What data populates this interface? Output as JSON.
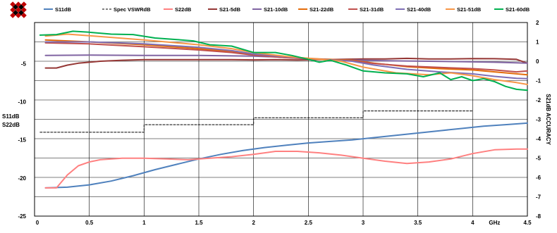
{
  "chart_data": {
    "type": "line",
    "xlabel": "GHz",
    "ylabel_left": [
      "S11dB",
      "S22dB"
    ],
    "ylabel_right": "S21dB ACCURACY",
    "x_ticks": [
      "0",
      "0.5",
      "1",
      "1.5",
      "2",
      "2.5",
      "3",
      "3.5",
      "4",
      "4.5"
    ],
    "y_left_ticks": [
      "-5",
      "-10",
      "-15",
      "-20",
      "-25"
    ],
    "y_right_ticks": [
      "2",
      "1",
      "0",
      "-1",
      "-2",
      "-3",
      "-4",
      "-5",
      "-6",
      "-7",
      "-8"
    ],
    "xlim": [
      0,
      4.5
    ],
    "ylim_left": [
      -25,
      0.4
    ],
    "ylim_right": [
      -8,
      2
    ],
    "grid": true,
    "legend_position": "top",
    "series": [
      {
        "name": "S11dB",
        "axis": "left",
        "color": "#4f81bd",
        "style": "solid",
        "x": [
          0.1,
          0.3,
          0.5,
          0.7,
          0.9,
          1.1,
          1.3,
          1.5,
          1.7,
          1.9,
          2.1,
          2.3,
          2.5,
          2.7,
          2.9,
          3.1,
          3.3,
          3.5,
          3.7,
          3.9,
          4.1,
          4.3,
          4.5
        ],
        "y": [
          -21.3,
          -21.2,
          -20.9,
          -20.4,
          -19.7,
          -18.9,
          -18.2,
          -17.5,
          -16.9,
          -16.4,
          -16.0,
          -15.7,
          -15.4,
          -15.2,
          -15.0,
          -14.7,
          -14.4,
          -14.1,
          -13.8,
          -13.5,
          -13.2,
          -13.0,
          -12.8
        ]
      },
      {
        "name": "Spec VSWRdB",
        "axis": "left",
        "color": "#000000",
        "style": "dashed",
        "x": [
          0.05,
          1.0,
          1.0,
          2.0,
          2.0,
          3.0,
          3.0,
          4.0
        ],
        "y": [
          -14,
          -14,
          -13,
          -13,
          -12.1,
          -12.1,
          -11.2,
          -11.2
        ]
      },
      {
        "name": "S22dB",
        "axis": "left",
        "color": "#ff8080",
        "style": "solid",
        "x": [
          0.1,
          0.2,
          0.3,
          0.4,
          0.5,
          0.6,
          0.8,
          1.0,
          1.2,
          1.4,
          1.6,
          1.8,
          2.0,
          2.2,
          2.4,
          2.6,
          2.8,
          3.0,
          3.2,
          3.4,
          3.6,
          3.8,
          4.0,
          4.2,
          4.4,
          4.5
        ],
        "y": [
          -21.3,
          -21.3,
          -19.6,
          -18.4,
          -17.9,
          -17.6,
          -17.4,
          -17.4,
          -17.5,
          -17.6,
          -17.4,
          -17.2,
          -16.9,
          -16.5,
          -16.5,
          -16.7,
          -17.0,
          -17.4,
          -17.8,
          -18.1,
          -17.9,
          -17.5,
          -16.8,
          -16.3,
          -16.2,
          -16.2
        ]
      },
      {
        "name": "S21-5dB",
        "axis": "right",
        "color": "#953735",
        "style": "solid",
        "x": [
          0.1,
          0.2,
          0.3,
          0.4,
          0.5,
          0.6,
          0.8,
          1.0,
          1.2,
          1.4,
          1.6,
          1.8,
          2.0,
          2.2,
          2.4,
          2.6,
          2.8,
          3.0,
          3.2,
          3.4,
          3.6,
          3.8,
          4.0,
          4.2,
          4.4,
          4.5
        ],
        "y": [
          -0.35,
          -0.35,
          -0.2,
          -0.1,
          -0.05,
          0.0,
          0.05,
          0.08,
          0.08,
          0.08,
          0.08,
          0.08,
          0.07,
          0.08,
          0.06,
          0.08,
          0.1,
          0.12,
          0.12,
          0.15,
          0.12,
          0.12,
          0.14,
          0.13,
          0.1,
          -0.1
        ]
      },
      {
        "name": "S21-10dB",
        "axis": "right",
        "color": "#8064a2",
        "style": "solid",
        "x": [
          0.1,
          0.5,
          1.0,
          1.5,
          2.0,
          2.2,
          2.5,
          2.8,
          3.0,
          3.3,
          3.6,
          3.9,
          4.2,
          4.4,
          4.5
        ],
        "y": [
          0.3,
          0.32,
          0.3,
          0.3,
          0.26,
          0.22,
          0.12,
          0.08,
          0.05,
          0.02,
          0.0,
          -0.02,
          -0.05,
          -0.08,
          -0.1
        ]
      },
      {
        "name": "S21-22dB",
        "axis": "right",
        "color": "#e46c0a",
        "style": "solid",
        "x": [
          0.1,
          0.5,
          1.0,
          1.5,
          1.8,
          2.0,
          2.3,
          2.6,
          2.9,
          3.1,
          3.4,
          3.7,
          4.0,
          4.2,
          4.4,
          4.5
        ],
        "y": [
          1.1,
          1.0,
          0.85,
          0.65,
          0.5,
          0.35,
          0.22,
          0.12,
          0.05,
          -0.1,
          -0.28,
          -0.38,
          -0.45,
          -0.55,
          -0.65,
          -0.7
        ]
      },
      {
        "name": "S21-31dB",
        "axis": "right",
        "color": "#c0504d",
        "style": "solid",
        "x": [
          0.1,
          0.5,
          1.0,
          1.5,
          1.8,
          2.0,
          2.3,
          2.6,
          2.9,
          3.1,
          3.4,
          3.7,
          4.0,
          4.2,
          4.4,
          4.5
        ],
        "y": [
          0.95,
          0.9,
          0.75,
          0.58,
          0.45,
          0.32,
          0.18,
          0.1,
          0.02,
          -0.12,
          -0.25,
          -0.32,
          -0.38,
          -0.45,
          -0.55,
          -0.5
        ]
      },
      {
        "name": "S21-40dB",
        "axis": "right",
        "color": "#7f6fb5",
        "style": "solid",
        "x": [
          0.1,
          0.5,
          1.0,
          1.5,
          1.8,
          2.0,
          2.3,
          2.6,
          2.9,
          3.1,
          3.4,
          3.7,
          4.0,
          4.2,
          4.4,
          4.5
        ],
        "y": [
          1.0,
          1.0,
          0.9,
          0.72,
          0.55,
          0.38,
          0.22,
          0.1,
          0.0,
          -0.2,
          -0.42,
          -0.55,
          -0.65,
          -0.78,
          -0.88,
          -0.9
        ]
      },
      {
        "name": "S21-51dB",
        "axis": "right",
        "color": "#f79646",
        "style": "solid",
        "x": [
          0.1,
          0.3,
          0.5,
          1.0,
          1.5,
          1.8,
          2.0,
          2.3,
          2.6,
          2.8,
          3.0,
          3.3,
          3.6,
          3.8,
          4.0,
          4.2,
          4.4,
          4.5
        ],
        "y": [
          1.3,
          1.4,
          1.32,
          1.1,
          0.85,
          0.65,
          0.45,
          0.25,
          0.1,
          0.0,
          -0.3,
          -0.6,
          -0.7,
          -0.6,
          -0.75,
          -0.95,
          -1.1,
          -1.2
        ]
      },
      {
        "name": "S21-60dB",
        "axis": "right",
        "color": "#00b050",
        "style": "solid",
        "x": [
          0.05,
          0.2,
          0.35,
          0.5,
          0.7,
          0.9,
          1.1,
          1.3,
          1.45,
          1.6,
          1.8,
          2.0,
          2.2,
          2.35,
          2.5,
          2.6,
          2.7,
          2.85,
          3.0,
          3.2,
          3.4,
          3.55,
          3.7,
          3.8,
          3.9,
          4.0,
          4.1,
          4.2,
          4.3,
          4.4,
          4.5
        ],
        "y": [
          1.35,
          1.38,
          1.55,
          1.5,
          1.4,
          1.38,
          1.2,
          1.12,
          1.05,
          0.85,
          0.78,
          0.45,
          0.45,
          0.3,
          0.1,
          -0.05,
          0.05,
          -0.2,
          -0.5,
          -0.6,
          -0.65,
          -0.8,
          -0.6,
          -0.95,
          -0.8,
          -1.0,
          -0.9,
          -1.05,
          -1.3,
          -1.45,
          -1.5
        ]
      }
    ]
  }
}
